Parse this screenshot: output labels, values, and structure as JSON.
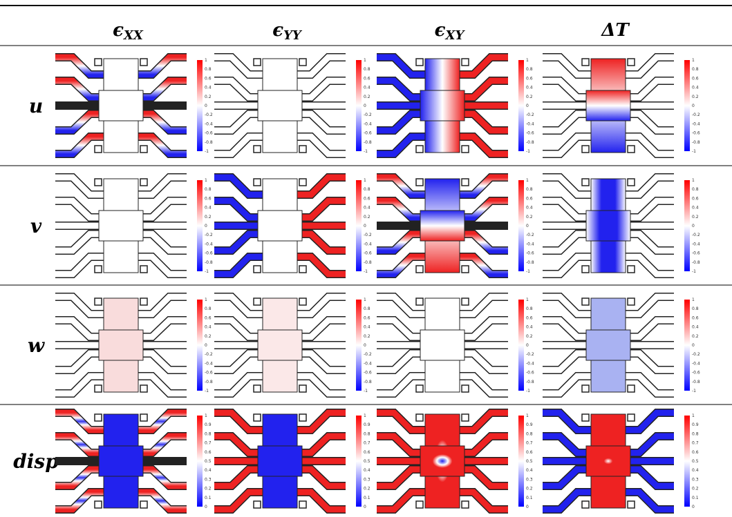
{
  "columns": [
    {
      "symbol": "ϵ",
      "subscript": "XX"
    },
    {
      "symbol": "ϵ",
      "subscript": "YY"
    },
    {
      "symbol": "ϵ",
      "subscript": "XY"
    },
    {
      "symbol": "ΔT"
    }
  ],
  "rows": [
    "u",
    "v",
    "w",
    "disp"
  ],
  "colorbar_ticks": {
    "signed": [
      "1",
      "0.8",
      "0.6",
      "0.4",
      "0.2",
      "0",
      "-0.2",
      "-0.4",
      "-0.6",
      "-0.8",
      "-1"
    ],
    "unsigned": [
      "1",
      "0.9",
      "0.8",
      "0.7",
      "0.6",
      "0.5",
      "0.4",
      "0.3",
      "0.2",
      "0.1",
      "0"
    ]
  }
}
